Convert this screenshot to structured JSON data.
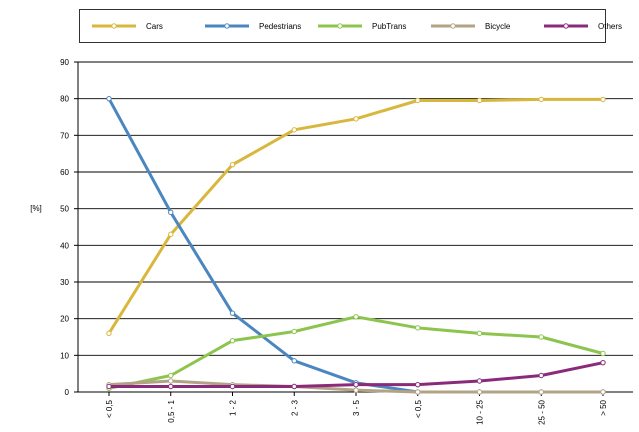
{
  "chart_data": {
    "type": "line",
    "categories": [
      "< 0,5",
      "0,5 - 1",
      "1 - 2",
      "2 - 3",
      "3 - 5",
      "< 0,5",
      "10 - 25",
      "25 - 50",
      "> 50"
    ],
    "ylabel": "[%]",
    "xlabel": "",
    "ylim": [
      0,
      90
    ],
    "yticks": [
      0,
      10,
      20,
      30,
      40,
      50,
      60,
      70,
      80,
      90
    ],
    "grid": true,
    "legend_position": "top",
    "series": [
      {
        "name": "Cars",
        "color": "#D8B73C",
        "values": [
          16,
          43,
          62,
          71.5,
          74.5,
          79.5,
          79.5,
          79.8,
          79.8
        ]
      },
      {
        "name": "Pedestrians",
        "color": "#4A86C0",
        "values": [
          80,
          49,
          21.5,
          8.5,
          2.5,
          0,
          0,
          0,
          0
        ]
      },
      {
        "name": "PubTrans",
        "color": "#8DC44E",
        "values": [
          1,
          4.5,
          14,
          16.5,
          20.5,
          17.5,
          16,
          15,
          10.5
        ]
      },
      {
        "name": "Bicycle",
        "color": "#B2A384",
        "values": [
          2,
          3,
          2,
          1.5,
          0.5,
          0,
          0,
          0,
          0
        ]
      },
      {
        "name": "Others",
        "color": "#8B2A7A",
        "values": [
          1.5,
          1.5,
          1.5,
          1.5,
          2,
          2,
          3,
          4.5,
          8
        ]
      }
    ]
  }
}
